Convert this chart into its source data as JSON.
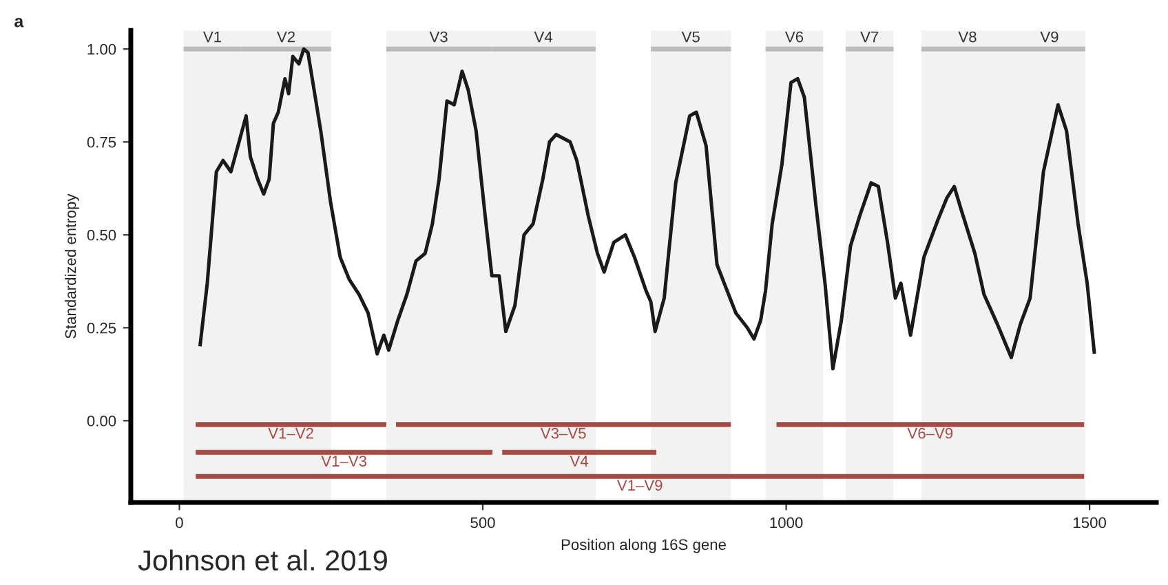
{
  "chart_data": {
    "type": "line",
    "xlabel": "Position along 16S gene",
    "ylabel": "Standardized entropy",
    "annotations": [
      "a",
      "Johnson et al. 2019"
    ],
    "xlim": [
      -80,
      1610
    ],
    "ylim": [
      -0.22,
      1.05
    ],
    "xticks": [
      0,
      500,
      1000,
      1500
    ],
    "yticks": [
      {
        "value": 0,
        "label": "0.00"
      },
      {
        "value": 0.25,
        "label": "0.25"
      },
      {
        "value": 0.5,
        "label": "0.50"
      },
      {
        "value": 0.75,
        "label": "0.75"
      },
      {
        "value": 1,
        "label": "1.00"
      }
    ],
    "grid": false,
    "legend": false,
    "bands": [
      {
        "axis": "x",
        "from": 7,
        "to": 102,
        "label": "V1",
        "color": "#f2f2f2"
      },
      {
        "axis": "x",
        "from": 102,
        "to": 250,
        "label": "V2",
        "color": "#f2f2f2"
      },
      {
        "axis": "x",
        "from": 341,
        "to": 514,
        "label": "V3",
        "color": "#f2f2f2"
      },
      {
        "axis": "x",
        "from": 514,
        "to": 686,
        "label": "V4",
        "color": "#f2f2f2"
      },
      {
        "axis": "x",
        "from": 777,
        "to": 909,
        "label": "V5",
        "color": "#f2f2f2"
      },
      {
        "axis": "x",
        "from": 966,
        "to": 1061,
        "label": "V6",
        "color": "#f2f2f2"
      },
      {
        "axis": "x",
        "from": 1098,
        "to": 1177,
        "label": "V7",
        "color": "#f2f2f2"
      },
      {
        "axis": "x",
        "from": 1223,
        "to": 1375,
        "label": "V8",
        "color": "#f2f2f2"
      },
      {
        "axis": "x",
        "from": 1375,
        "to": 1493,
        "label": "V9",
        "color": "#f2f2f2"
      }
    ],
    "series": [
      {
        "color": "#1a1a1a",
        "x": [
          34,
          46,
          61,
          72,
          85,
          95,
          110,
          117,
          129,
          139,
          148,
          155,
          163,
          174,
          180,
          187,
          197,
          205,
          212,
          224,
          233,
          249,
          265,
          280,
          296,
          311,
          326,
          337,
          345,
          360,
          375,
          390,
          405,
          417,
          428,
          441,
          453,
          466,
          476,
          489,
          504,
          515,
          527,
          538,
          553,
          568,
          583,
          599,
          610,
          621,
          644,
          655,
          674,
          689,
          700,
          716,
          735,
          750,
          769,
          777,
          784,
          799,
          818,
          841,
          852,
          868,
          886,
          905,
          917,
          936,
          947,
          958,
          966,
          977,
          993,
          1008,
          1019,
          1030,
          1049,
          1064,
          1077,
          1091,
          1106,
          1121,
          1140,
          1152,
          1167,
          1180,
          1189,
          1205,
          1227,
          1250,
          1265,
          1277,
          1288,
          1311,
          1326,
          1348,
          1371,
          1386,
          1402,
          1424,
          1448,
          1462,
          1481,
          1496,
          1508
        ],
        "values": [
          0.2,
          0.37,
          0.67,
          0.7,
          0.67,
          0.73,
          0.82,
          0.71,
          0.65,
          0.61,
          0.65,
          0.8,
          0.83,
          0.92,
          0.88,
          0.98,
          0.96,
          1.0,
          0.99,
          0.87,
          0.78,
          0.59,
          0.44,
          0.38,
          0.34,
          0.29,
          0.18,
          0.23,
          0.19,
          0.27,
          0.34,
          0.43,
          0.45,
          0.53,
          0.65,
          0.86,
          0.85,
          0.94,
          0.89,
          0.78,
          0.55,
          0.39,
          0.39,
          0.24,
          0.31,
          0.5,
          0.53,
          0.65,
          0.75,
          0.77,
          0.75,
          0.7,
          0.55,
          0.45,
          0.4,
          0.48,
          0.5,
          0.44,
          0.35,
          0.32,
          0.24,
          0.33,
          0.64,
          0.82,
          0.83,
          0.74,
          0.42,
          0.34,
          0.29,
          0.25,
          0.22,
          0.27,
          0.35,
          0.53,
          0.69,
          0.91,
          0.92,
          0.87,
          0.58,
          0.37,
          0.14,
          0.27,
          0.47,
          0.55,
          0.64,
          0.63,
          0.48,
          0.33,
          0.37,
          0.23,
          0.44,
          0.54,
          0.6,
          0.63,
          0.57,
          0.45,
          0.34,
          0.26,
          0.17,
          0.26,
          0.33,
          0.67,
          0.85,
          0.78,
          0.53,
          0.37,
          0.18
        ]
      },
      {
        "name": "V1–V2",
        "color": "#a84a44",
        "x": [
          27,
          341
        ],
        "values": [
          -0.01,
          -0.01
        ]
      },
      {
        "name": "V3–V5",
        "color": "#a84a44",
        "x": [
          357,
          909
        ],
        "values": [
          -0.01,
          -0.01
        ]
      },
      {
        "name": "V6–V9",
        "color": "#a84a44",
        "x": [
          984,
          1491
        ],
        "values": [
          -0.01,
          -0.01
        ]
      },
      {
        "name": "V1–V3",
        "color": "#a84a44",
        "x": [
          27,
          516
        ],
        "values": [
          -0.085,
          -0.085
        ]
      },
      {
        "name": "V4",
        "color": "#a84a44",
        "x": [
          532,
          786
        ],
        "values": [
          -0.085,
          -0.085
        ]
      },
      {
        "name": "V1–V9",
        "color": "#a84a44",
        "x": [
          27,
          1491
        ],
        "values": [
          -0.15,
          -0.15
        ]
      }
    ]
  }
}
